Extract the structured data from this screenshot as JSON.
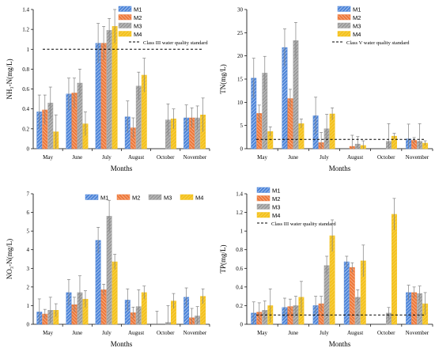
{
  "colors": {
    "M1": "#4f86d9",
    "M2": "#ee7a3c",
    "M3": "#a9a9a9",
    "M4": "#f4c21e"
  },
  "chart_data": [
    {
      "type": "bar",
      "ylabel": "NH₃-N(mg/L)",
      "xlabel": "Months",
      "categories": [
        "May",
        "June",
        "July",
        "August",
        "October",
        "November"
      ],
      "ylim": [
        0,
        1.4
      ],
      "yticks": [
        "0",
        "0.2",
        "0.4",
        "0.6",
        "0.8",
        "1",
        "1.2",
        "1.4"
      ],
      "grid": false,
      "legend_position": "top-right",
      "series": [
        {
          "name": "M1",
          "values": [
            0.37,
            0.55,
            1.06,
            0.32,
            0,
            0.31
          ],
          "errors": [
            0.17,
            0.16,
            0.2,
            0.16,
            0,
            0.13
          ]
        },
        {
          "name": "M2",
          "values": [
            0.39,
            0.56,
            1.06,
            0.21,
            0,
            0.31
          ],
          "errors": [
            0.15,
            0.15,
            0.17,
            0.1,
            0,
            0.1
          ]
        },
        {
          "name": "M3",
          "values": [
            0.46,
            0.66,
            1.19,
            0.63,
            0.29,
            0.31
          ],
          "errors": [
            0.16,
            0.14,
            0.12,
            0.14,
            0.16,
            0.12
          ]
        },
        {
          "name": "M4",
          "values": [
            0.17,
            0.25,
            1.23,
            0.74,
            0.3,
            0.34
          ],
          "errors": [
            0.17,
            0.12,
            0.17,
            0.17,
            0.1,
            0.17
          ]
        }
      ],
      "reference_line": {
        "value": 1.0,
        "label": "Class III water quality standard"
      }
    },
    {
      "type": "bar",
      "ylabel": "TN(mg/L)",
      "xlabel": "Months",
      "categories": [
        "May",
        "June",
        "July",
        "August",
        "October",
        "November"
      ],
      "ylim": [
        0,
        30
      ],
      "yticks": [
        "0",
        "5",
        "10",
        "15",
        "20",
        "25",
        "30"
      ],
      "grid": false,
      "legend_position": "top-right",
      "series": [
        {
          "name": "M1",
          "values": [
            15.2,
            21.8,
            7.1,
            0,
            0,
            2.1
          ],
          "errors": [
            4.3,
            4.0,
            4.0,
            0,
            0,
            3.2
          ]
        },
        {
          "name": "M2",
          "values": [
            7.6,
            10.8,
            1.3,
            0.5,
            0,
            1.8
          ],
          "errors": [
            1.8,
            2.0,
            2.2,
            2.4,
            0,
            0.6
          ]
        },
        {
          "name": "M3",
          "values": [
            16.3,
            23.3,
            4.3,
            1.0,
            1.6,
            1.6
          ],
          "errors": [
            3.6,
            3.9,
            3.1,
            1.6,
            3.8,
            3.8
          ]
        },
        {
          "name": "M4",
          "values": [
            3.7,
            5.4,
            7.5,
            0.7,
            2.7,
            1.2
          ],
          "errors": [
            1.0,
            1.0,
            1.3,
            1.0,
            0.6,
            0.5
          ]
        }
      ],
      "reference_line": {
        "value": 2.0,
        "label": "Class V water quality standard"
      }
    },
    {
      "type": "bar",
      "ylabel": "NO₃-N(mg/L)",
      "xlabel": "Months",
      "categories": [
        "May",
        "June",
        "July",
        "August",
        "October",
        "November"
      ],
      "ylim": [
        0,
        7
      ],
      "yticks": [
        "0",
        "1",
        "2",
        "3",
        "4",
        "5",
        "6",
        "7"
      ],
      "grid": false,
      "legend_position": "top",
      "series": [
        {
          "name": "M1",
          "values": [
            0.66,
            1.7,
            4.5,
            1.3,
            0,
            1.45
          ],
          "errors": [
            0.7,
            0.7,
            0.7,
            0.6,
            0.7,
            0.5
          ]
        },
        {
          "name": "M2",
          "values": [
            0.55,
            1.05,
            1.85,
            0.62,
            0,
            0.35
          ],
          "errors": [
            0.25,
            0.4,
            0.3,
            0.3,
            0,
            0.5
          ]
        },
        {
          "name": "M3",
          "values": [
            0.75,
            1.7,
            5.8,
            0.95,
            0.1,
            0.45
          ],
          "errors": [
            0.7,
            0.9,
            0.85,
            0.9,
            0.9,
            0.5
          ]
        },
        {
          "name": "M4",
          "values": [
            0.75,
            1.35,
            3.35,
            1.7,
            1.25,
            1.5
          ],
          "errors": [
            0.35,
            0.45,
            0.4,
            0.35,
            0.4,
            0.4
          ]
        }
      ]
    },
    {
      "type": "bar",
      "ylabel": "TP(mg/L)",
      "xlabel": "Months",
      "categories": [
        "May",
        "June",
        "July",
        "August",
        "October",
        "November"
      ],
      "ylim": [
        0,
        1.4
      ],
      "yticks": [
        "0",
        "0.2",
        "0.4",
        "0.6",
        "0.8",
        "1",
        "1.2",
        "1.4"
      ],
      "grid": false,
      "legend_position": "top-left",
      "series": [
        {
          "name": "M1",
          "values": [
            0.12,
            0.18,
            0.2,
            0.67,
            0,
            0.34
          ],
          "errors": [
            0.12,
            0.1,
            0.1,
            0.06,
            0,
            0.08
          ]
        },
        {
          "name": "M2",
          "values": [
            0.13,
            0.19,
            0.22,
            0.61,
            0,
            0.34
          ],
          "errors": [
            0.1,
            0.08,
            0.08,
            0.05,
            0,
            0.06
          ]
        },
        {
          "name": "M3",
          "values": [
            0.15,
            0.2,
            0.63,
            0.29,
            0.12,
            0.33
          ],
          "errors": [
            0.1,
            0.1,
            0.1,
            0.08,
            0.06,
            0.08
          ]
        },
        {
          "name": "M4",
          "values": [
            0.2,
            0.29,
            0.95,
            0.68,
            1.18,
            0.22
          ],
          "errors": [
            0.18,
            0.17,
            0.17,
            0.17,
            0.17,
            0.12
          ]
        }
      ],
      "reference_line": {
        "value": 0.1,
        "label": "Class III water quality standard"
      }
    }
  ]
}
